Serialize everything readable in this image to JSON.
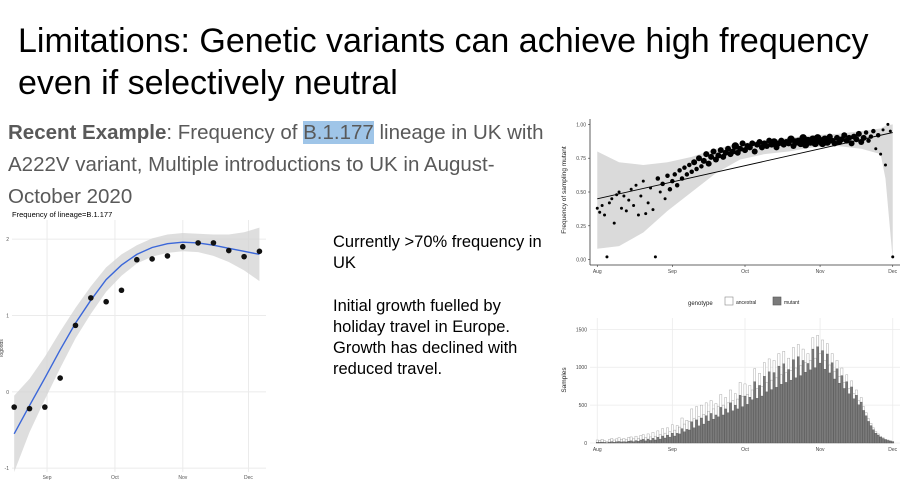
{
  "slide": {
    "title": "Limitations: Genetic variants can achieve high frequency even if selectively neutral",
    "subtitle": {
      "bold": "Recent Example",
      "text1": ": Frequency of ",
      "highlight": "B.1.177",
      "text2": " lineage in UK with A222V variant, Multiple introductions to UK in August-October 2020"
    },
    "note1": "Currently >70% frequency in UK",
    "note2": "Initial growth fuelled by holiday travel in Europe. Growth has declined with reduced travel."
  },
  "colors": {
    "fit_line": "#3b67d9",
    "band": "#d3d3d3",
    "mutant_bar": "#7a7a7a",
    "ancestral_bar": "#ffffff"
  },
  "chart_data": [
    {
      "type": "scatter",
      "title": "Frequency of lineage=B.1.177",
      "ylabel": "logodds",
      "x_ticks": [
        "Sep",
        "Oct",
        "Nov",
        "Dec"
      ],
      "x_tick_days": [
        16,
        47,
        78,
        108
      ],
      "y_ticks": [
        "2",
        "1",
        "0",
        "-1"
      ],
      "y_tick_values": [
        2,
        1,
        0,
        -1
      ],
      "xlim": [
        0,
        116
      ],
      "ylim": [
        -1.05,
        2.25
      ],
      "grid": true,
      "points": {
        "x": [
          1,
          8,
          15,
          22,
          29,
          36,
          43,
          50,
          57,
          64,
          71,
          78,
          85,
          92,
          99,
          106,
          113
        ],
        "y": [
          -0.2,
          -0.22,
          -0.2,
          0.18,
          0.87,
          1.23,
          1.18,
          1.33,
          1.73,
          1.74,
          1.78,
          1.9,
          1.95,
          1.95,
          1.85,
          1.77,
          1.84
        ]
      },
      "fit": {
        "x": [
          1,
          8,
          15,
          22,
          29,
          36,
          43,
          50,
          57,
          64,
          71,
          78,
          85,
          92,
          99,
          106,
          113
        ],
        "y": [
          -0.55,
          -0.18,
          0.18,
          0.55,
          0.9,
          1.2,
          1.47,
          1.66,
          1.8,
          1.89,
          1.94,
          1.96,
          1.95,
          1.92,
          1.88,
          1.84,
          1.8
        ]
      },
      "band_halfwidth": [
        0.5,
        0.35,
        0.28,
        0.24,
        0.2,
        0.18,
        0.16,
        0.14,
        0.12,
        0.12,
        0.12,
        0.12,
        0.12,
        0.14,
        0.18,
        0.25,
        0.35
      ]
    },
    {
      "type": "scatter",
      "ylabel": "Frequency of sampling mutant",
      "x_ticks": [
        "Aug",
        "Sep",
        "Oct",
        "Nov",
        "Dec"
      ],
      "x_tick_days": [
        1,
        32,
        62,
        93,
        123
      ],
      "y_ticks": [
        "1.00",
        "0.75",
        "0.50",
        "0.25",
        "0.00"
      ],
      "y_tick_values": [
        1.0,
        0.75,
        0.5,
        0.25,
        0.0
      ],
      "xlim": [
        -2,
        126
      ],
      "ylim": [
        -0.04,
        1.04
      ],
      "grid": false,
      "points": {
        "x": [
          1,
          2,
          3,
          4,
          5,
          6,
          7,
          8,
          9,
          10,
          11,
          12,
          13,
          14,
          15,
          16,
          17,
          18,
          19,
          20,
          21,
          22,
          23,
          24,
          25,
          26,
          27,
          28,
          29,
          30,
          31,
          32,
          33,
          34,
          35,
          36,
          37,
          38,
          39,
          40,
          41,
          42,
          43,
          44,
          45,
          46,
          47,
          48,
          49,
          50,
          51,
          52,
          53,
          54,
          55,
          56,
          57,
          58,
          59,
          60,
          61,
          62,
          63,
          64,
          65,
          66,
          67,
          68,
          69,
          70,
          71,
          72,
          73,
          74,
          75,
          76,
          77,
          78,
          79,
          80,
          81,
          82,
          83,
          84,
          85,
          86,
          87,
          88,
          89,
          90,
          91,
          92,
          93,
          94,
          95,
          96,
          97,
          98,
          99,
          100,
          101,
          102,
          103,
          104,
          105,
          106,
          107,
          108,
          109,
          110,
          111,
          112,
          113,
          114,
          115,
          116,
          117,
          118,
          119,
          120,
          121,
          122,
          123
        ],
        "y": [
          0.38,
          0.35,
          0.4,
          0.33,
          0.02,
          0.42,
          0.45,
          0.27,
          0.48,
          0.5,
          0.38,
          0.47,
          0.36,
          0.44,
          0.52,
          0.4,
          0.55,
          0.33,
          0.47,
          0.58,
          0.34,
          0.42,
          0.53,
          0.37,
          0.02,
          0.6,
          0.5,
          0.56,
          0.45,
          0.62,
          0.52,
          0.58,
          0.63,
          0.55,
          0.66,
          0.6,
          0.68,
          0.63,
          0.7,
          0.65,
          0.72,
          0.67,
          0.75,
          0.69,
          0.73,
          0.78,
          0.71,
          0.76,
          0.8,
          0.74,
          0.77,
          0.81,
          0.76,
          0.79,
          0.82,
          0.78,
          0.8,
          0.84,
          0.79,
          0.82,
          0.86,
          0.81,
          0.84,
          0.83,
          0.86,
          0.8,
          0.85,
          0.87,
          0.83,
          0.86,
          0.84,
          0.88,
          0.85,
          0.87,
          0.83,
          0.86,
          0.88,
          0.85,
          0.87,
          0.86,
          0.89,
          0.84,
          0.87,
          0.88,
          0.86,
          0.9,
          0.85,
          0.88,
          0.87,
          0.89,
          0.86,
          0.9,
          0.88,
          0.86,
          0.89,
          0.87,
          0.91,
          0.88,
          0.86,
          0.9,
          0.87,
          0.89,
          0.92,
          0.88,
          0.9,
          0.86,
          0.91,
          0.89,
          0.93,
          0.87,
          0.9,
          0.94,
          0.88,
          0.91,
          0.95,
          0.82,
          0.92,
          0.78,
          0.96,
          0.7,
          1.0,
          0.95,
          0.02
        ],
        "sizes": [
          2,
          2,
          2,
          2,
          2,
          2,
          2,
          2,
          2,
          2,
          2,
          2,
          2,
          2,
          2,
          2,
          2,
          2,
          2,
          2,
          2,
          2,
          2,
          2,
          2,
          3,
          2,
          3,
          2,
          3,
          3,
          3,
          3,
          3,
          3,
          3,
          3,
          3,
          3,
          3,
          4,
          3,
          4,
          3,
          4,
          4,
          4,
          4,
          4,
          4,
          4,
          4,
          4,
          4,
          4,
          4,
          4,
          5,
          4,
          4,
          4,
          4,
          4,
          4,
          4,
          4,
          4,
          4,
          4,
          4,
          4,
          4,
          4,
          5,
          4,
          4,
          4,
          4,
          4,
          4,
          5,
          4,
          5,
          4,
          5,
          5,
          5,
          5,
          5,
          5,
          5,
          5,
          5,
          5,
          5,
          5,
          4,
          4,
          4,
          4,
          4,
          4,
          4,
          4,
          4,
          4,
          4,
          4,
          4,
          4,
          4,
          3,
          3,
          3,
          3,
          2,
          3,
          2,
          2,
          2,
          2,
          2,
          2
        ]
      },
      "trend": {
        "x": [
          1,
          123
        ],
        "y": [
          0.45,
          0.94
        ]
      },
      "band": {
        "x": [
          1,
          10,
          20,
          30,
          40,
          50,
          60,
          70,
          80,
          90,
          100,
          110,
          118,
          120,
          123
        ],
        "upper": [
          0.8,
          0.72,
          0.7,
          0.72,
          0.76,
          0.82,
          0.86,
          0.88,
          0.9,
          0.92,
          0.93,
          0.95,
          0.97,
          0.99,
          1.0
        ],
        "lower": [
          0.08,
          0.1,
          0.2,
          0.36,
          0.5,
          0.64,
          0.74,
          0.78,
          0.8,
          0.83,
          0.84,
          0.82,
          0.78,
          0.6,
          0.0
        ]
      }
    },
    {
      "type": "bar",
      "legend_title": "genotype",
      "legend": [
        "ancestral",
        "mutant"
      ],
      "legend_position": "top",
      "ylabel": "Samples",
      "x_ticks": [
        "Aug",
        "Sep",
        "Oct",
        "Nov",
        "Dec"
      ],
      "x_tick_days": [
        1,
        32,
        62,
        93,
        123
      ],
      "y_ticks": [
        "1500",
        "1000",
        "500",
        "0"
      ],
      "y_tick_values": [
        1500,
        1000,
        500,
        0
      ],
      "xlim": [
        -2,
        126
      ],
      "ylim": [
        0,
        1650
      ],
      "grid": true,
      "series": [
        {
          "name": "ancestral",
          "x": [
            1,
            2,
            3,
            4,
            5,
            6,
            7,
            8,
            9,
            10,
            11,
            12,
            13,
            14,
            15,
            16,
            17,
            18,
            19,
            20,
            21,
            22,
            23,
            24,
            25,
            26,
            27,
            28,
            29,
            30,
            31,
            32,
            33,
            34,
            35,
            36,
            37,
            38,
            39,
            40,
            41,
            42,
            43,
            44,
            45,
            46,
            47,
            48,
            49,
            50,
            51,
            52,
            53,
            54,
            55,
            56,
            57,
            58,
            59,
            60,
            61,
            62,
            63,
            64,
            65,
            66,
            67,
            68,
            69,
            70,
            71,
            72,
            73,
            74,
            75,
            76,
            77,
            78,
            79,
            80,
            81,
            82,
            83,
            84,
            85,
            86,
            87,
            88,
            89,
            90,
            91,
            92,
            93,
            94,
            95,
            96,
            97,
            98,
            99,
            100,
            101,
            102,
            103,
            104,
            105,
            106,
            107,
            108,
            109,
            110,
            111,
            112,
            113,
            114,
            115,
            116,
            117,
            118,
            119,
            120,
            121,
            122,
            123
          ],
          "values": [
            40,
            35,
            50,
            30,
            20,
            45,
            60,
            40,
            55,
            70,
            50,
            60,
            45,
            75,
            80,
            55,
            90,
            60,
            100,
            110,
            70,
            120,
            80,
            140,
            90,
            160,
            110,
            190,
            130,
            200,
            150,
            240,
            170,
            230,
            210,
            330,
            250,
            300,
            280,
            450,
            320,
            480,
            350,
            500,
            380,
            530,
            420,
            560,
            450,
            520,
            480,
            640,
            500,
            600,
            530,
            700,
            560,
            650,
            580,
            800,
            610,
            780,
            640,
            760,
            700,
            980,
            720,
            920,
            750,
            1060,
            800,
            1110,
            830,
            1090,
            860,
            1180,
            900,
            1210,
            930,
            1120,
            960,
            1260,
            990,
            1300,
            1020,
            1240,
            1060,
            1180,
            1090,
            1390,
            1120,
            1420,
            1180,
            1360,
            1090,
            1310,
            1030,
            1180,
            940,
            1090,
            880,
            990,
            800,
            900,
            720,
            820,
            650,
            700,
            560,
            600,
            480,
            400,
            320,
            260,
            200,
            150,
            120,
            90,
            70,
            50,
            40,
            30,
            20
          ]
        },
        {
          "name": "mutant",
          "x": [
            1,
            2,
            3,
            4,
            5,
            6,
            7,
            8,
            9,
            10,
            11,
            12,
            13,
            14,
            15,
            16,
            17,
            18,
            19,
            20,
            21,
            22,
            23,
            24,
            25,
            26,
            27,
            28,
            29,
            30,
            31,
            32,
            33,
            34,
            35,
            36,
            37,
            38,
            39,
            40,
            41,
            42,
            43,
            44,
            45,
            46,
            47,
            48,
            49,
            50,
            51,
            52,
            53,
            54,
            55,
            56,
            57,
            58,
            59,
            60,
            61,
            62,
            63,
            64,
            65,
            66,
            67,
            68,
            69,
            70,
            71,
            72,
            73,
            74,
            75,
            76,
            77,
            78,
            79,
            80,
            81,
            82,
            83,
            84,
            85,
            86,
            87,
            88,
            89,
            90,
            91,
            92,
            93,
            94,
            95,
            96,
            97,
            98,
            99,
            100,
            101,
            102,
            103,
            104,
            105,
            106,
            107,
            108,
            109,
            110,
            111,
            112,
            113,
            114,
            115,
            116,
            117,
            118,
            119,
            120,
            121,
            122,
            123
          ],
          "values": [
            10,
            10,
            12,
            8,
            5,
            12,
            18,
            10,
            16,
            20,
            14,
            18,
            14,
            24,
            28,
            18,
            32,
            22,
            40,
            48,
            28,
            52,
            34,
            62,
            40,
            76,
            52,
            92,
            66,
            104,
            78,
            130,
            92,
            128,
            120,
            190,
            148,
            180,
            172,
            280,
            200,
            305,
            226,
            330,
            250,
            360,
            290,
            390,
            315,
            370,
            345,
            470,
            370,
            450,
            400,
            530,
            425,
            500,
            450,
            630,
            480,
            620,
            510,
            605,
            570,
            810,
            590,
            760,
            620,
            880,
            675,
            940,
            705,
            930,
            735,
            1015,
            775,
            1045,
            800,
            970,
            830,
            1100,
            860,
            1140,
            890,
            1090,
            935,
            1050,
            965,
            1240,
            995,
            1270,
            1055,
            1220,
            975,
            1175,
            925,
            1060,
            845,
            980,
            790,
            890,
            720,
            810,
            650,
            740,
            585,
            630,
            505,
            540,
            430,
            360,
            285,
            230,
            175,
            130,
            105,
            78,
            60,
            43,
            34,
            26,
            17
          ]
        }
      ]
    }
  ]
}
